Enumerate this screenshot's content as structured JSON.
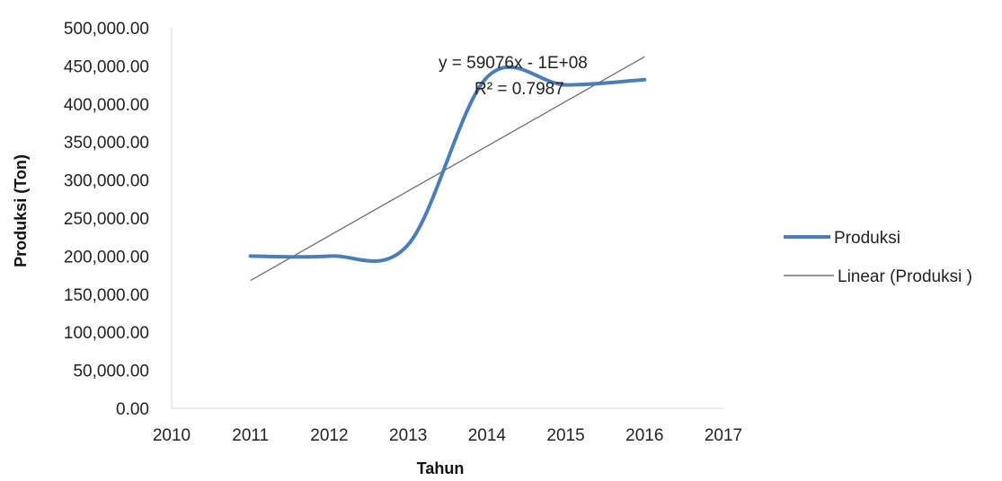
{
  "chart_data": {
    "type": "line",
    "xlabel": "Tahun",
    "ylabel": "Produksi (Ton)",
    "xlim": [
      2010,
      2017
    ],
    "ylim": [
      0,
      500000
    ],
    "x_ticks": [
      "2010",
      "2011",
      "2012",
      "2013",
      "2014",
      "2015",
      "2016",
      "2017"
    ],
    "y_ticks": [
      "0.00",
      "50,000.00",
      "100,000.00",
      "150,000.00",
      "200,000.00",
      "250,000.00",
      "300,000.00",
      "350,000.00",
      "400,000.00",
      "450,000.00",
      "500,000.00"
    ],
    "grid": false,
    "smoothed": true,
    "legend_position": "right",
    "series": [
      {
        "name": "Produksi",
        "color": "#4a7ebb",
        "x": [
          2011,
          2012,
          2013,
          2014,
          2015,
          2016
        ],
        "values": [
          200000,
          200000,
          215000,
          435000,
          425000,
          432000
        ]
      },
      {
        "name": "Linear (Produksi )",
        "color": "#707070",
        "trendline": true,
        "x": [
          2011,
          2016
        ],
        "values": [
          168000,
          462000
        ]
      }
    ],
    "annotations": [
      "y = 59076x - 1E+08",
      "R² = 0.7987"
    ]
  }
}
